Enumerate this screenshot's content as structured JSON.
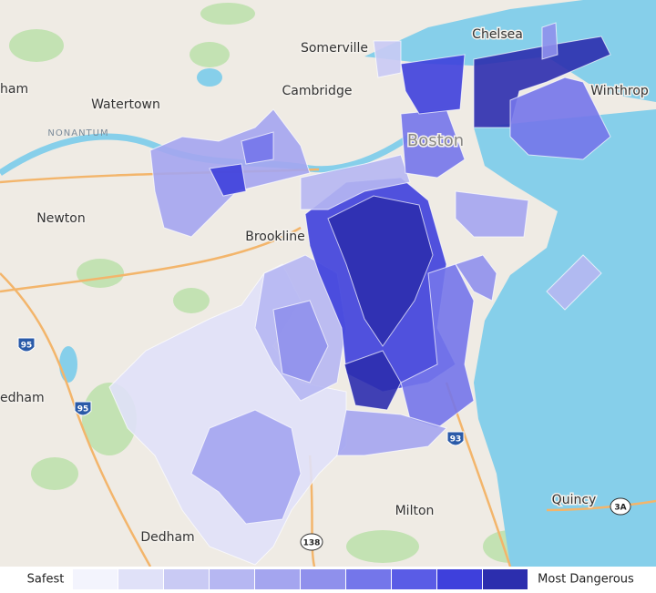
{
  "map": {
    "place_labels": [
      "Somerville",
      "Chelsea",
      "ham",
      "Watertown",
      "Cambridge",
      "Winthrop",
      "Boston",
      "Newton",
      "Brookline",
      "edham",
      "Milton",
      "Quincy",
      "Dedham"
    ],
    "district_labels": [
      "NONANTUM"
    ],
    "shields": [
      "95",
      "95",
      "93",
      "138",
      "3A"
    ]
  },
  "legend": {
    "low_label": "Safest",
    "high_label": "Most Dangerous",
    "colors": [
      "#f3f4fd",
      "#e0e1f8",
      "#c9caf4",
      "#b6b7f2",
      "#a4a5ef",
      "#8f90ec",
      "#7476ea",
      "#5a5ce6",
      "#3e40dc",
      "#2c2eae"
    ]
  }
}
